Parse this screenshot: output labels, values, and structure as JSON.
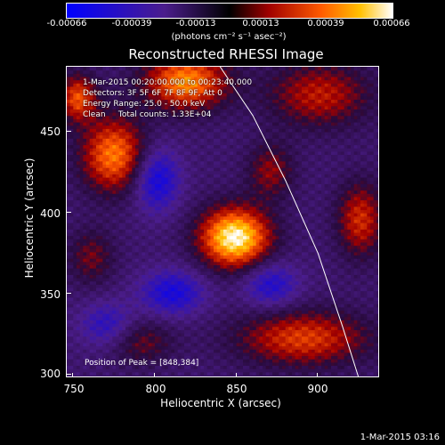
{
  "colorbar": {
    "ticks": [
      "-0.00066",
      "-0.00039",
      "-0.00013",
      "0.00013",
      "0.00039",
      "0.00066"
    ],
    "unit": "(photons cm⁻² s⁻¹ asec⁻²)"
  },
  "annotation": {
    "line1": "1-Mar-2015 00:20:00.000 to 00:23:40.000",
    "line2": "Detectors: 3F 5F 6F 7F 8F 9F, Att 0",
    "line3": "Energy Range: 25.0 - 50.0 keV",
    "line4": "Clean     Total counts: 1.33E+04",
    "peak": "Position of Peak = [848,384]"
  },
  "timestamp": "1-Mar-2015 03:16",
  "chart_data": {
    "type": "heatmap",
    "title": "Reconstructed RHESSI Image",
    "xlabel": "Heliocentric X (arcsec)",
    "ylabel": "Heliocentric Y (arcsec)",
    "xlim": [
      746,
      938
    ],
    "ylim": [
      298,
      490
    ],
    "xticks": [
      750,
      800,
      850,
      900
    ],
    "yticks": [
      300,
      350,
      400,
      450
    ],
    "colorbar_range": [
      -0.00066,
      0.00066
    ],
    "peak_position": [
      848,
      384
    ],
    "blobs": [
      {
        "x": 848,
        "y": 384,
        "amp": 1.0,
        "sx": 15,
        "sy": 13
      },
      {
        "x": 774,
        "y": 435,
        "amp": 0.7,
        "sx": 14,
        "sy": 16
      },
      {
        "x": 818,
        "y": 480,
        "amp": 0.75,
        "sx": 18,
        "sy": 12
      },
      {
        "x": 900,
        "y": 472,
        "amp": 0.45,
        "sx": 22,
        "sy": 14
      },
      {
        "x": 925,
        "y": 395,
        "amp": 0.5,
        "sx": 10,
        "sy": 16
      },
      {
        "x": 890,
        "y": 322,
        "amp": 0.55,
        "sx": 28,
        "sy": 12
      },
      {
        "x": 752,
        "y": 470,
        "amp": 0.6,
        "sx": 8,
        "sy": 10
      },
      {
        "x": 790,
        "y": 320,
        "amp": 0.3,
        "sx": 14,
        "sy": 10
      },
      {
        "x": 870,
        "y": 425,
        "amp": 0.35,
        "sx": 10,
        "sy": 12
      },
      {
        "x": 760,
        "y": 372,
        "amp": 0.3,
        "sx": 10,
        "sy": 12
      },
      {
        "x": 800,
        "y": 420,
        "amp": -0.5,
        "sx": 10,
        "sy": 14
      },
      {
        "x": 810,
        "y": 350,
        "amp": -0.45,
        "sx": 14,
        "sy": 10
      },
      {
        "x": 870,
        "y": 355,
        "amp": -0.4,
        "sx": 12,
        "sy": 10
      },
      {
        "x": 770,
        "y": 330,
        "amp": -0.35,
        "sx": 12,
        "sy": 10
      }
    ],
    "limb_curve": [
      [
        840,
        490
      ],
      [
        860,
        460
      ],
      [
        880,
        420
      ],
      [
        900,
        375
      ],
      [
        915,
        330
      ],
      [
        925,
        298
      ]
    ]
  }
}
